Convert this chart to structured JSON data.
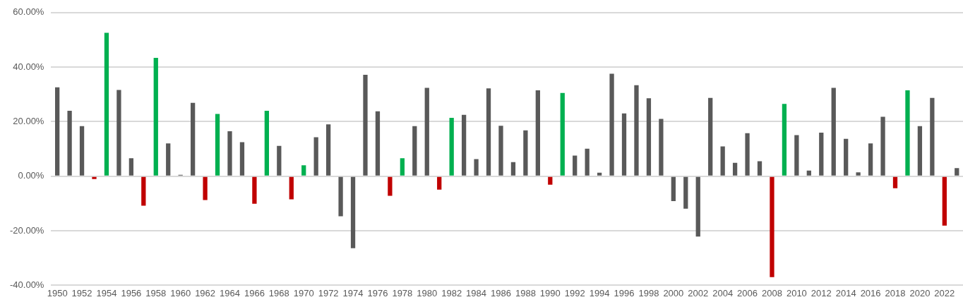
{
  "chart_data": {
    "type": "bar",
    "categories": [
      "1950",
      null,
      "1952",
      null,
      "1954",
      null,
      "1956",
      null,
      "1958",
      null,
      "1960",
      null,
      "1962",
      null,
      "1964",
      null,
      "1966",
      null,
      "1968",
      null,
      "1970",
      null,
      "1972",
      null,
      "1974",
      null,
      "1976",
      null,
      "1978",
      null,
      "1980",
      null,
      "1982",
      null,
      "1984",
      null,
      "1986",
      null,
      "1988",
      null,
      "1990",
      null,
      "1992",
      null,
      "1994",
      null,
      "1996",
      null,
      "1998",
      null,
      "2000",
      null,
      "2002",
      null,
      "2004",
      null,
      "2006",
      null,
      "2008",
      null,
      "2010",
      null,
      "2012",
      null,
      "2014",
      null,
      "2016",
      null,
      "2018",
      null,
      "2020",
      null,
      "2022",
      null
    ],
    "values": [
      32.6,
      24.0,
      18.4,
      -1.0,
      52.6,
      31.6,
      6.6,
      -10.8,
      43.4,
      12.0,
      0.5,
      26.9,
      -8.7,
      22.8,
      16.5,
      12.5,
      -10.1,
      24.0,
      11.1,
      -8.5,
      4.0,
      14.3,
      19.0,
      -14.7,
      -26.4,
      37.2,
      23.8,
      -7.2,
      6.6,
      18.4,
      32.4,
      -4.9,
      21.4,
      22.5,
      6.3,
      32.2,
      18.5,
      5.2,
      16.8,
      31.5,
      -3.1,
      30.5,
      7.6,
      10.1,
      1.3,
      37.6,
      23.0,
      33.4,
      28.6,
      21.0,
      -9.1,
      -11.9,
      -22.1,
      28.7,
      10.9,
      4.9,
      15.8,
      5.5,
      -37.0,
      26.5,
      15.1,
      2.1,
      16.0,
      32.4,
      13.7,
      1.4,
      12.0,
      21.8,
      -4.4,
      31.5,
      18.4,
      28.7,
      -18.1,
      3.0
    ],
    "colors": [
      "#595959",
      "#595959",
      "#595959",
      "#c00000",
      "#00b050",
      "#595959",
      "#595959",
      "#c00000",
      "#00b050",
      "#595959",
      "#595959",
      "#595959",
      "#c00000",
      "#00b050",
      "#595959",
      "#595959",
      "#c00000",
      "#00b050",
      "#595959",
      "#c00000",
      "#00b050",
      "#595959",
      "#595959",
      "#595959",
      "#595959",
      "#595959",
      "#595959",
      "#c00000",
      "#00b050",
      "#595959",
      "#595959",
      "#c00000",
      "#00b050",
      "#595959",
      "#595959",
      "#595959",
      "#595959",
      "#595959",
      "#595959",
      "#595959",
      "#c00000",
      "#00b050",
      "#595959",
      "#595959",
      "#595959",
      "#595959",
      "#595959",
      "#595959",
      "#595959",
      "#595959",
      "#595959",
      "#595959",
      "#595959",
      "#595959",
      "#595959",
      "#595959",
      "#595959",
      "#595959",
      "#c00000",
      "#00b050",
      "#595959",
      "#595959",
      "#595959",
      "#595959",
      "#595959",
      "#595959",
      "#595959",
      "#595959",
      "#c00000",
      "#00b050",
      "#595959",
      "#595959",
      "#c00000",
      "#595959"
    ],
    "ylim": [
      -40,
      60
    ],
    "yticks": [
      {
        "value": -40,
        "label": "-40.00%"
      },
      {
        "value": -20,
        "label": "-20.00%"
      },
      {
        "value": 0,
        "label": "0.00%"
      },
      {
        "value": 20,
        "label": "20.00%"
      },
      {
        "value": 40,
        "label": "40.00%"
      },
      {
        "value": 60,
        "label": "60.00%"
      }
    ],
    "grid": "y",
    "legend": false
  }
}
